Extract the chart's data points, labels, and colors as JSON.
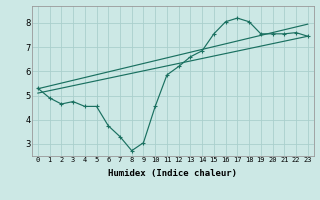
{
  "xlabel": "Humidex (Indice chaleur)",
  "ylabel": "",
  "bg_color": "#cce8e5",
  "grid_color": "#aacfcc",
  "line_color": "#1a7060",
  "xlim": [
    -0.5,
    23.5
  ],
  "ylim": [
    2.5,
    8.7
  ],
  "xticks": [
    0,
    1,
    2,
    3,
    4,
    5,
    6,
    7,
    8,
    9,
    10,
    11,
    12,
    13,
    14,
    15,
    16,
    17,
    18,
    19,
    20,
    21,
    22,
    23
  ],
  "yticks": [
    3,
    4,
    5,
    6,
    7,
    8
  ],
  "hourly_x": [
    0,
    1,
    2,
    3,
    4,
    5,
    6,
    7,
    8,
    9,
    10,
    11,
    12,
    13,
    14,
    15,
    16,
    17,
    18,
    19,
    20,
    21,
    22,
    23
  ],
  "hourly_y": [
    5.3,
    4.9,
    4.65,
    4.75,
    4.55,
    4.55,
    3.75,
    3.3,
    2.72,
    3.05,
    4.55,
    5.85,
    6.2,
    6.6,
    6.85,
    7.55,
    8.05,
    8.2,
    8.05,
    7.55,
    7.55,
    7.55,
    7.6,
    7.45
  ],
  "upper_line_x": [
    0,
    23
  ],
  "upper_line_y": [
    5.28,
    7.95
  ],
  "lower_line_x": [
    0,
    23
  ],
  "lower_line_y": [
    5.1,
    7.45
  ],
  "xtick_fontsize": 5.0,
  "ytick_fontsize": 6.0,
  "xlabel_fontsize": 6.5
}
